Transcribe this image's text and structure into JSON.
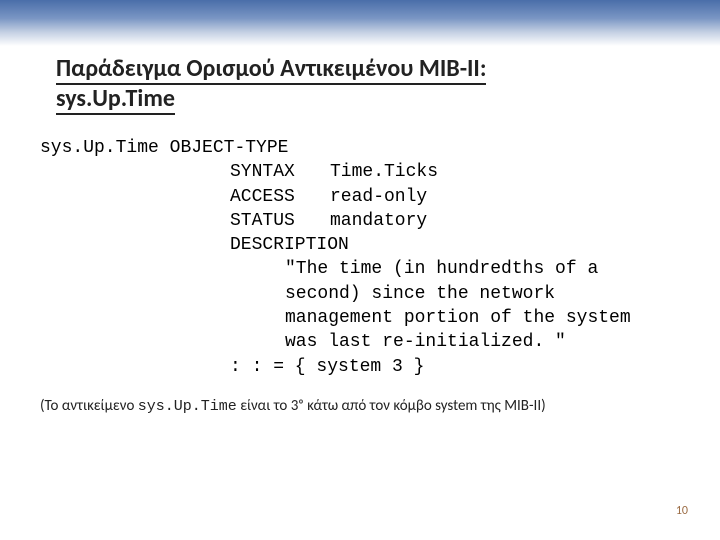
{
  "title": {
    "line1": "Παράδειγμα Ορισμού Αντικειμένου MIB-II:",
    "line2": "sys.Up.Time"
  },
  "definition": {
    "name": "sys.Up.Time",
    "object": "OBJECT-TYPE",
    "syntax_label": "SYNTAX",
    "syntax_value": "Time.Ticks",
    "access_label": "ACCESS",
    "access_value": "read-only",
    "status_label": "STATUS",
    "status_value": "mandatory",
    "description_label": "DESCRIPTION",
    "description_text": "\"The time (in hundredths of a second) since the network management portion of the system was last re-initialized. \"",
    "assign": ": : = { system 3 }"
  },
  "footer": {
    "prefix": "(Το αντικείμενο ",
    "mono": "sys.Up.Time",
    "suffix": " είναι το 3ᵒ κάτω από τον κόμβο system της MIB-II)"
  },
  "page_number": "10",
  "colors": {
    "text": "#000000",
    "pagenum": "#9a6a42",
    "band_top": "#4a6ea9"
  }
}
